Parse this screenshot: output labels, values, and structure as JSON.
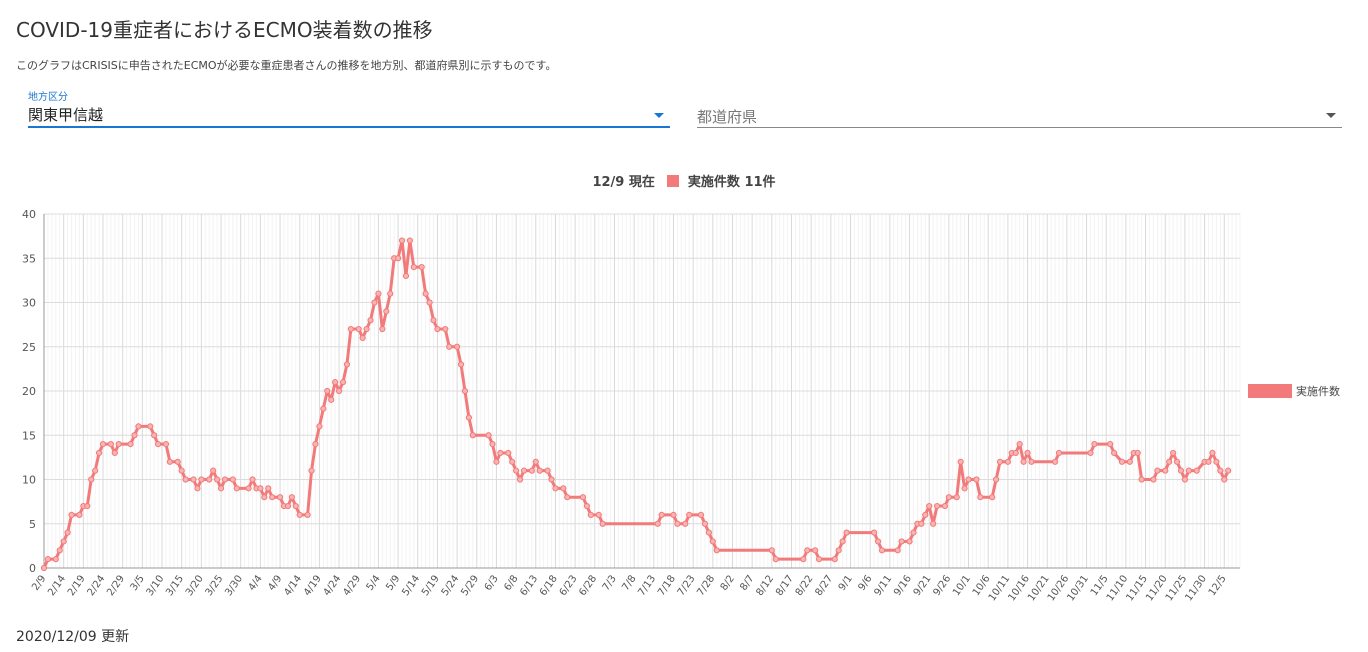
{
  "header": {
    "title": "COVID-19重症者におけるECMO装着数の推移",
    "description": "このグラフはCRISISに申告されたECMOが必要な重症患者さんの推移を地方別、都道府県別に示すものです。"
  },
  "filters": {
    "region": {
      "label": "地方区分",
      "value": "関東甲信越",
      "icon": "chevron-down-icon"
    },
    "prefecture": {
      "placeholder": "都道府県",
      "icon": "chevron-down-icon"
    }
  },
  "chart_head": {
    "date": "12/9 現在",
    "summary": "実施件数 11件"
  },
  "footer": {
    "updated": "2020/12/09 更新"
  },
  "colors": {
    "series": "#f27a7a",
    "accent": "#1976d2"
  },
  "chart_data": {
    "type": "line",
    "x_start": "2/9",
    "x_end": "12/9",
    "ylim": [
      0,
      40
    ],
    "yticks": [
      0,
      5,
      10,
      15,
      20,
      25,
      30,
      35,
      40
    ],
    "xtick_labels": [
      "2/9",
      "2/14",
      "2/19",
      "2/24",
      "2/29",
      "3/5",
      "3/10",
      "3/15",
      "3/20",
      "3/25",
      "3/30",
      "4/4",
      "4/9",
      "4/14",
      "4/19",
      "4/24",
      "4/29",
      "5/4",
      "5/9",
      "5/14",
      "5/19",
      "5/24",
      "5/29",
      "6/3",
      "6/8",
      "6/13",
      "6/18",
      "6/23",
      "6/28",
      "7/3",
      "7/8",
      "7/13",
      "7/18",
      "7/23",
      "7/28",
      "8/2",
      "8/7",
      "8/12",
      "8/17",
      "8/22",
      "8/27",
      "9/1",
      "9/6",
      "9/11",
      "9/16",
      "9/21",
      "9/26",
      "10/1",
      "10/6",
      "10/11",
      "10/16",
      "10/21",
      "10/26",
      "10/31",
      "11/5",
      "11/10",
      "11/15",
      "11/20",
      "11/25",
      "11/30",
      "12/5"
    ],
    "grid": true,
    "legend_position": "right",
    "series": [
      {
        "name": "実施件数",
        "points": [
          [
            "2/9",
            0
          ],
          [
            "2/10",
            1
          ],
          [
            "2/12",
            1
          ],
          [
            "2/13",
            2
          ],
          [
            "2/14",
            3
          ],
          [
            "2/15",
            4
          ],
          [
            "2/16",
            6
          ],
          [
            "2/18",
            6
          ],
          [
            "2/19",
            7
          ],
          [
            "2/20",
            7
          ],
          [
            "2/21",
            10
          ],
          [
            "2/22",
            11
          ],
          [
            "2/23",
            13
          ],
          [
            "2/24",
            14
          ],
          [
            "2/26",
            14
          ],
          [
            "2/27",
            13
          ],
          [
            "2/28",
            14
          ],
          [
            "3/2",
            14
          ],
          [
            "3/3",
            15
          ],
          [
            "3/4",
            16
          ],
          [
            "3/7",
            16
          ],
          [
            "3/8",
            15
          ],
          [
            "3/9",
            14
          ],
          [
            "3/11",
            14
          ],
          [
            "3/12",
            12
          ],
          [
            "3/14",
            12
          ],
          [
            "3/15",
            11
          ],
          [
            "3/16",
            10
          ],
          [
            "3/18",
            10
          ],
          [
            "3/19",
            9
          ],
          [
            "3/20",
            10
          ],
          [
            "3/22",
            10
          ],
          [
            "3/23",
            11
          ],
          [
            "3/24",
            10
          ],
          [
            "3/25",
            9
          ],
          [
            "3/26",
            10
          ],
          [
            "3/28",
            10
          ],
          [
            "3/29",
            9
          ],
          [
            "4/1",
            9
          ],
          [
            "4/2",
            10
          ],
          [
            "4/3",
            9
          ],
          [
            "4/4",
            9
          ],
          [
            "4/5",
            8
          ],
          [
            "4/6",
            9
          ],
          [
            "4/7",
            8
          ],
          [
            "4/9",
            8
          ],
          [
            "4/10",
            7
          ],
          [
            "4/11",
            7
          ],
          [
            "4/12",
            8
          ],
          [
            "4/13",
            7
          ],
          [
            "4/14",
            6
          ],
          [
            "4/16",
            6
          ],
          [
            "4/17",
            11
          ],
          [
            "4/18",
            14
          ],
          [
            "4/19",
            16
          ],
          [
            "4/20",
            18
          ],
          [
            "4/21",
            20
          ],
          [
            "4/22",
            19
          ],
          [
            "4/23",
            21
          ],
          [
            "4/24",
            20
          ],
          [
            "4/25",
            21
          ],
          [
            "4/26",
            23
          ],
          [
            "4/27",
            27
          ],
          [
            "4/29",
            27
          ],
          [
            "4/30",
            26
          ],
          [
            "5/1",
            27
          ],
          [
            "5/2",
            28
          ],
          [
            "5/3",
            30
          ],
          [
            "5/4",
            31
          ],
          [
            "5/5",
            27
          ],
          [
            "5/6",
            29
          ],
          [
            "5/7",
            31
          ],
          [
            "5/8",
            35
          ],
          [
            "5/9",
            35
          ],
          [
            "5/10",
            37
          ],
          [
            "5/11",
            33
          ],
          [
            "5/12",
            37
          ],
          [
            "5/13",
            34
          ],
          [
            "5/15",
            34
          ],
          [
            "5/16",
            31
          ],
          [
            "5/17",
            30
          ],
          [
            "5/18",
            28
          ],
          [
            "5/19",
            27
          ],
          [
            "5/21",
            27
          ],
          [
            "5/22",
            25
          ],
          [
            "5/24",
            25
          ],
          [
            "5/25",
            23
          ],
          [
            "5/26",
            20
          ],
          [
            "5/27",
            17
          ],
          [
            "5/28",
            15
          ],
          [
            "6/1",
            15
          ],
          [
            "6/2",
            14
          ],
          [
            "6/3",
            12
          ],
          [
            "6/4",
            13
          ],
          [
            "6/6",
            13
          ],
          [
            "6/7",
            12
          ],
          [
            "6/8",
            11
          ],
          [
            "6/9",
            10
          ],
          [
            "6/10",
            11
          ],
          [
            "6/12",
            11
          ],
          [
            "6/13",
            12
          ],
          [
            "6/14",
            11
          ],
          [
            "6/16",
            11
          ],
          [
            "6/17",
            10
          ],
          [
            "6/18",
            9
          ],
          [
            "6/20",
            9
          ],
          [
            "6/21",
            8
          ],
          [
            "6/25",
            8
          ],
          [
            "6/26",
            7
          ],
          [
            "6/27",
            6
          ],
          [
            "6/29",
            6
          ],
          [
            "6/30",
            5
          ],
          [
            "7/14",
            5
          ],
          [
            "7/15",
            6
          ],
          [
            "7/18",
            6
          ],
          [
            "7/19",
            5
          ],
          [
            "7/21",
            5
          ],
          [
            "7/22",
            6
          ],
          [
            "7/25",
            6
          ],
          [
            "7/26",
            5
          ],
          [
            "7/27",
            4
          ],
          [
            "7/28",
            3
          ],
          [
            "7/29",
            2
          ],
          [
            "8/12",
            2
          ],
          [
            "8/13",
            1
          ],
          [
            "8/20",
            1
          ],
          [
            "8/21",
            2
          ],
          [
            "8/23",
            2
          ],
          [
            "8/24",
            1
          ],
          [
            "8/28",
            1
          ],
          [
            "8/29",
            2
          ],
          [
            "8/30",
            3
          ],
          [
            "8/31",
            4
          ],
          [
            "9/7",
            4
          ],
          [
            "9/8",
            3
          ],
          [
            "9/9",
            2
          ],
          [
            "9/13",
            2
          ],
          [
            "9/14",
            3
          ],
          [
            "9/16",
            3
          ],
          [
            "9/17",
            4
          ],
          [
            "9/18",
            5
          ],
          [
            "9/19",
            5
          ],
          [
            "9/20",
            6
          ],
          [
            "9/21",
            7
          ],
          [
            "9/22",
            5
          ],
          [
            "9/23",
            7
          ],
          [
            "9/25",
            7
          ],
          [
            "9/26",
            8
          ],
          [
            "9/28",
            8
          ],
          [
            "9/29",
            12
          ],
          [
            "9/30",
            9
          ],
          [
            "10/1",
            10
          ],
          [
            "10/3",
            10
          ],
          [
            "10/4",
            8
          ],
          [
            "10/7",
            8
          ],
          [
            "10/8",
            10
          ],
          [
            "10/9",
            12
          ],
          [
            "10/11",
            12
          ],
          [
            "10/12",
            13
          ],
          [
            "10/13",
            13
          ],
          [
            "10/14",
            14
          ],
          [
            "10/15",
            12
          ],
          [
            "10/16",
            13
          ],
          [
            "10/17",
            12
          ],
          [
            "10/23",
            12
          ],
          [
            "10/24",
            13
          ],
          [
            "11/1",
            13
          ],
          [
            "11/2",
            14
          ],
          [
            "11/6",
            14
          ],
          [
            "11/7",
            13
          ],
          [
            "11/9",
            12
          ],
          [
            "11/11",
            12
          ],
          [
            "11/12",
            13
          ],
          [
            "11/13",
            13
          ],
          [
            "11/14",
            10
          ],
          [
            "11/17",
            10
          ],
          [
            "11/18",
            11
          ],
          [
            "11/20",
            11
          ],
          [
            "11/21",
            12
          ],
          [
            "11/22",
            13
          ],
          [
            "11/23",
            12
          ],
          [
            "11/24",
            11
          ],
          [
            "11/25",
            10
          ],
          [
            "11/26",
            11
          ],
          [
            "11/28",
            11
          ],
          [
            "11/30",
            12
          ],
          [
            "12/1",
            12
          ],
          [
            "12/2",
            13
          ],
          [
            "12/3",
            12
          ],
          [
            "12/4",
            11
          ],
          [
            "12/5",
            10
          ],
          [
            "12/6",
            11
          ]
        ]
      }
    ]
  }
}
